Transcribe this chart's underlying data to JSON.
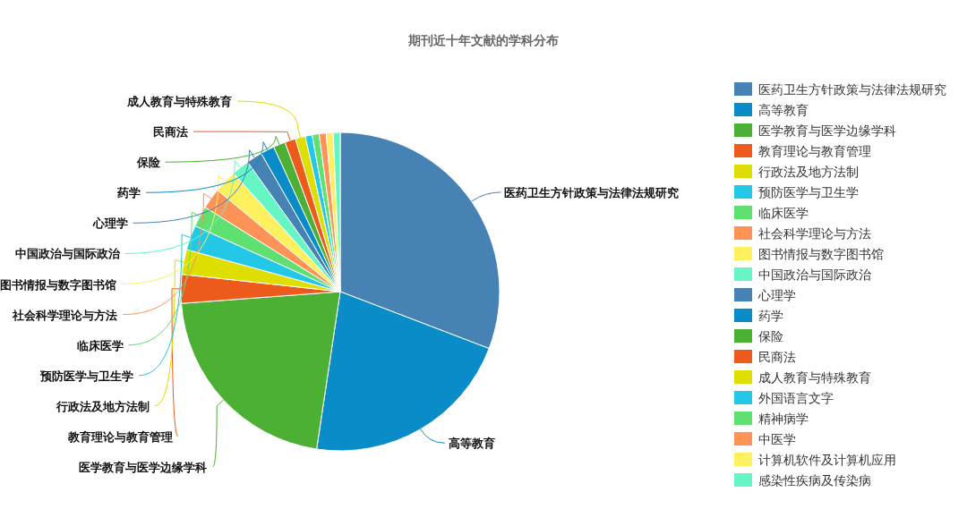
{
  "chart_data": {
    "type": "pie",
    "title": "期刊近十年文献的学科分布",
    "categories": [
      "医药卫生方针政策与法律法规研究",
      "高等教育",
      "医学教育与医学边缘学科",
      "教育理论与教育管理",
      "行政法及地方法制",
      "预防医学与卫生学",
      "临床医学",
      "社会科学理论与方法",
      "图书情报与数字图书馆",
      "中国政治与国际政治",
      "心理学",
      "药学",
      "保险",
      "民商法",
      "成人教育与特殊教育",
      "外国语言文字",
      "精神病学",
      "中医学",
      "计算机软件及计算机应用",
      "感染性疾病及传染病"
    ],
    "values": [
      30.6,
      21.4,
      21.3,
      2.9,
      2.5,
      2.5,
      2.1,
      2.1,
      2.3,
      1.8,
      1.6,
      1.4,
      1.2,
      1.1,
      1.0,
      0.7,
      0.7,
      0.7,
      0.7,
      0.7
    ],
    "colors": [
      "#4682b4",
      "#0a8cc8",
      "#4cb034",
      "#ec5a1c",
      "#dede00",
      "#22c8e5",
      "#60e070",
      "#ff9257",
      "#fff060",
      "#66f5c4",
      "#4682b4",
      "#0a8cc8",
      "#4cb034",
      "#ec5a1c",
      "#dede00",
      "#22c8e5",
      "#60e070",
      "#ff9257",
      "#fff060",
      "#66f5c4"
    ],
    "legend": "right"
  }
}
